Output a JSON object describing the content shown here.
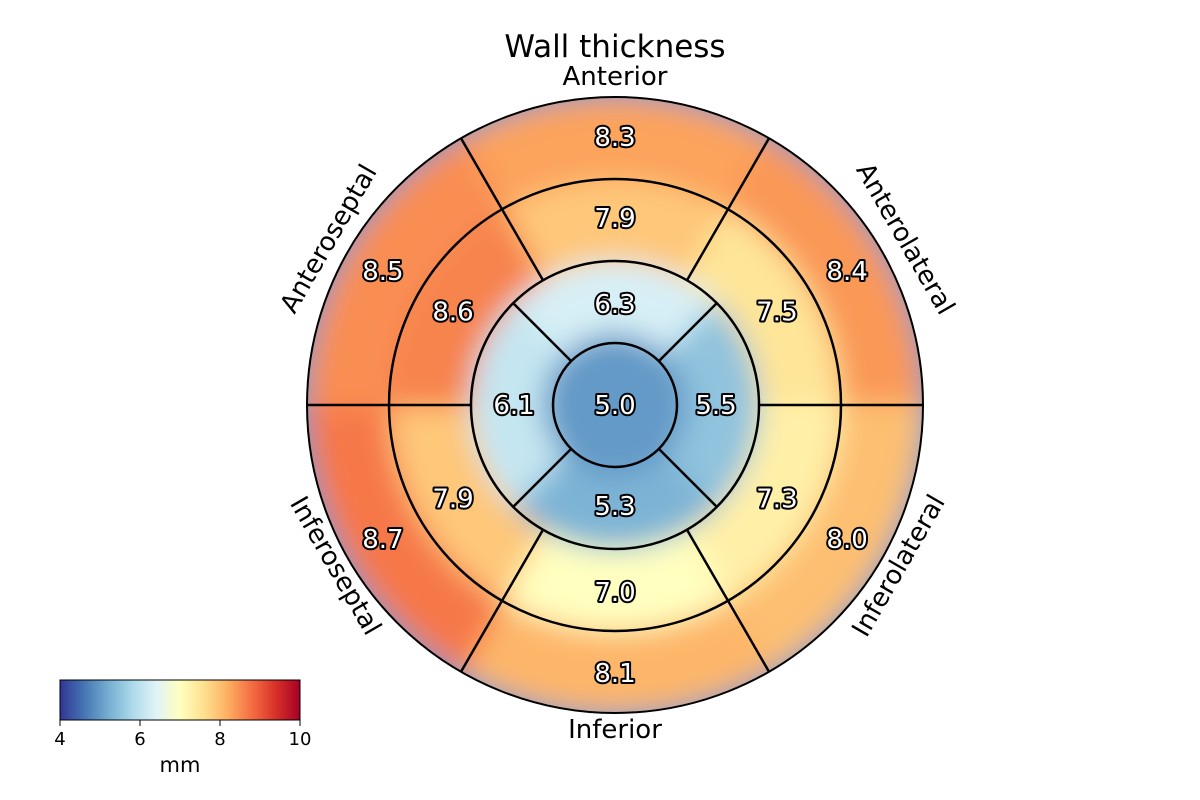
{
  "chart_data": {
    "type": "heatmap",
    "subtype": "bullseye-17-segment",
    "title": "Wall thickness",
    "wall_labels": {
      "anterior": "Anterior",
      "anterolateral": "Anterolateral",
      "inferolateral": "Inferolateral",
      "inferior": "Inferior",
      "inferoseptal": "Inferoseptal",
      "anteroseptal": "Anteroseptal"
    },
    "rings": [
      {
        "name": "basal",
        "segments": [
          {
            "wall": "Anterior",
            "value": 8.3,
            "label": "8.3"
          },
          {
            "wall": "Anterolateral",
            "value": 8.4,
            "label": "8.4"
          },
          {
            "wall": "Inferolateral",
            "value": 8.0,
            "label": "8.0"
          },
          {
            "wall": "Inferior",
            "value": 8.1,
            "label": "8.1"
          },
          {
            "wall": "Inferoseptal",
            "value": 8.7,
            "label": "8.7"
          },
          {
            "wall": "Anteroseptal",
            "value": 8.5,
            "label": "8.5"
          }
        ]
      },
      {
        "name": "mid",
        "segments": [
          {
            "wall": "Anterior",
            "value": 7.9,
            "label": "7.9"
          },
          {
            "wall": "Anterolateral",
            "value": 7.5,
            "label": "7.5"
          },
          {
            "wall": "Inferolateral",
            "value": 7.3,
            "label": "7.3"
          },
          {
            "wall": "Inferior",
            "value": 7.0,
            "label": "7.0"
          },
          {
            "wall": "Inferoseptal",
            "value": 7.9,
            "label": "7.9"
          },
          {
            "wall": "Anteroseptal",
            "value": 8.6,
            "label": "8.6"
          }
        ]
      },
      {
        "name": "apical",
        "segments": [
          {
            "wall": "Anterior",
            "value": 6.3,
            "label": "6.3"
          },
          {
            "wall": "Lateral",
            "value": 5.5,
            "label": "5.5"
          },
          {
            "wall": "Inferior",
            "value": 5.3,
            "label": "5.3"
          },
          {
            "wall": "Septal",
            "value": 6.1,
            "label": "6.1"
          }
        ]
      },
      {
        "name": "apex",
        "segments": [
          {
            "wall": "Apex",
            "value": 5.0,
            "label": "5.0"
          }
        ]
      }
    ],
    "colorbar": {
      "label": "mm",
      "range": [
        4,
        10
      ],
      "ticks": [
        {
          "value": 4,
          "label": "4"
        },
        {
          "value": 6,
          "label": "6"
        },
        {
          "value": 8,
          "label": "8"
        },
        {
          "value": 10,
          "label": "10"
        }
      ],
      "colormap": "RdYlBu_r",
      "stops": [
        "#313695",
        "#4575b4",
        "#74add1",
        "#abd9e9",
        "#e0f3f8",
        "#ffffbf",
        "#fee090",
        "#fdae61",
        "#f46d43",
        "#d73027",
        "#a50026"
      ]
    }
  }
}
